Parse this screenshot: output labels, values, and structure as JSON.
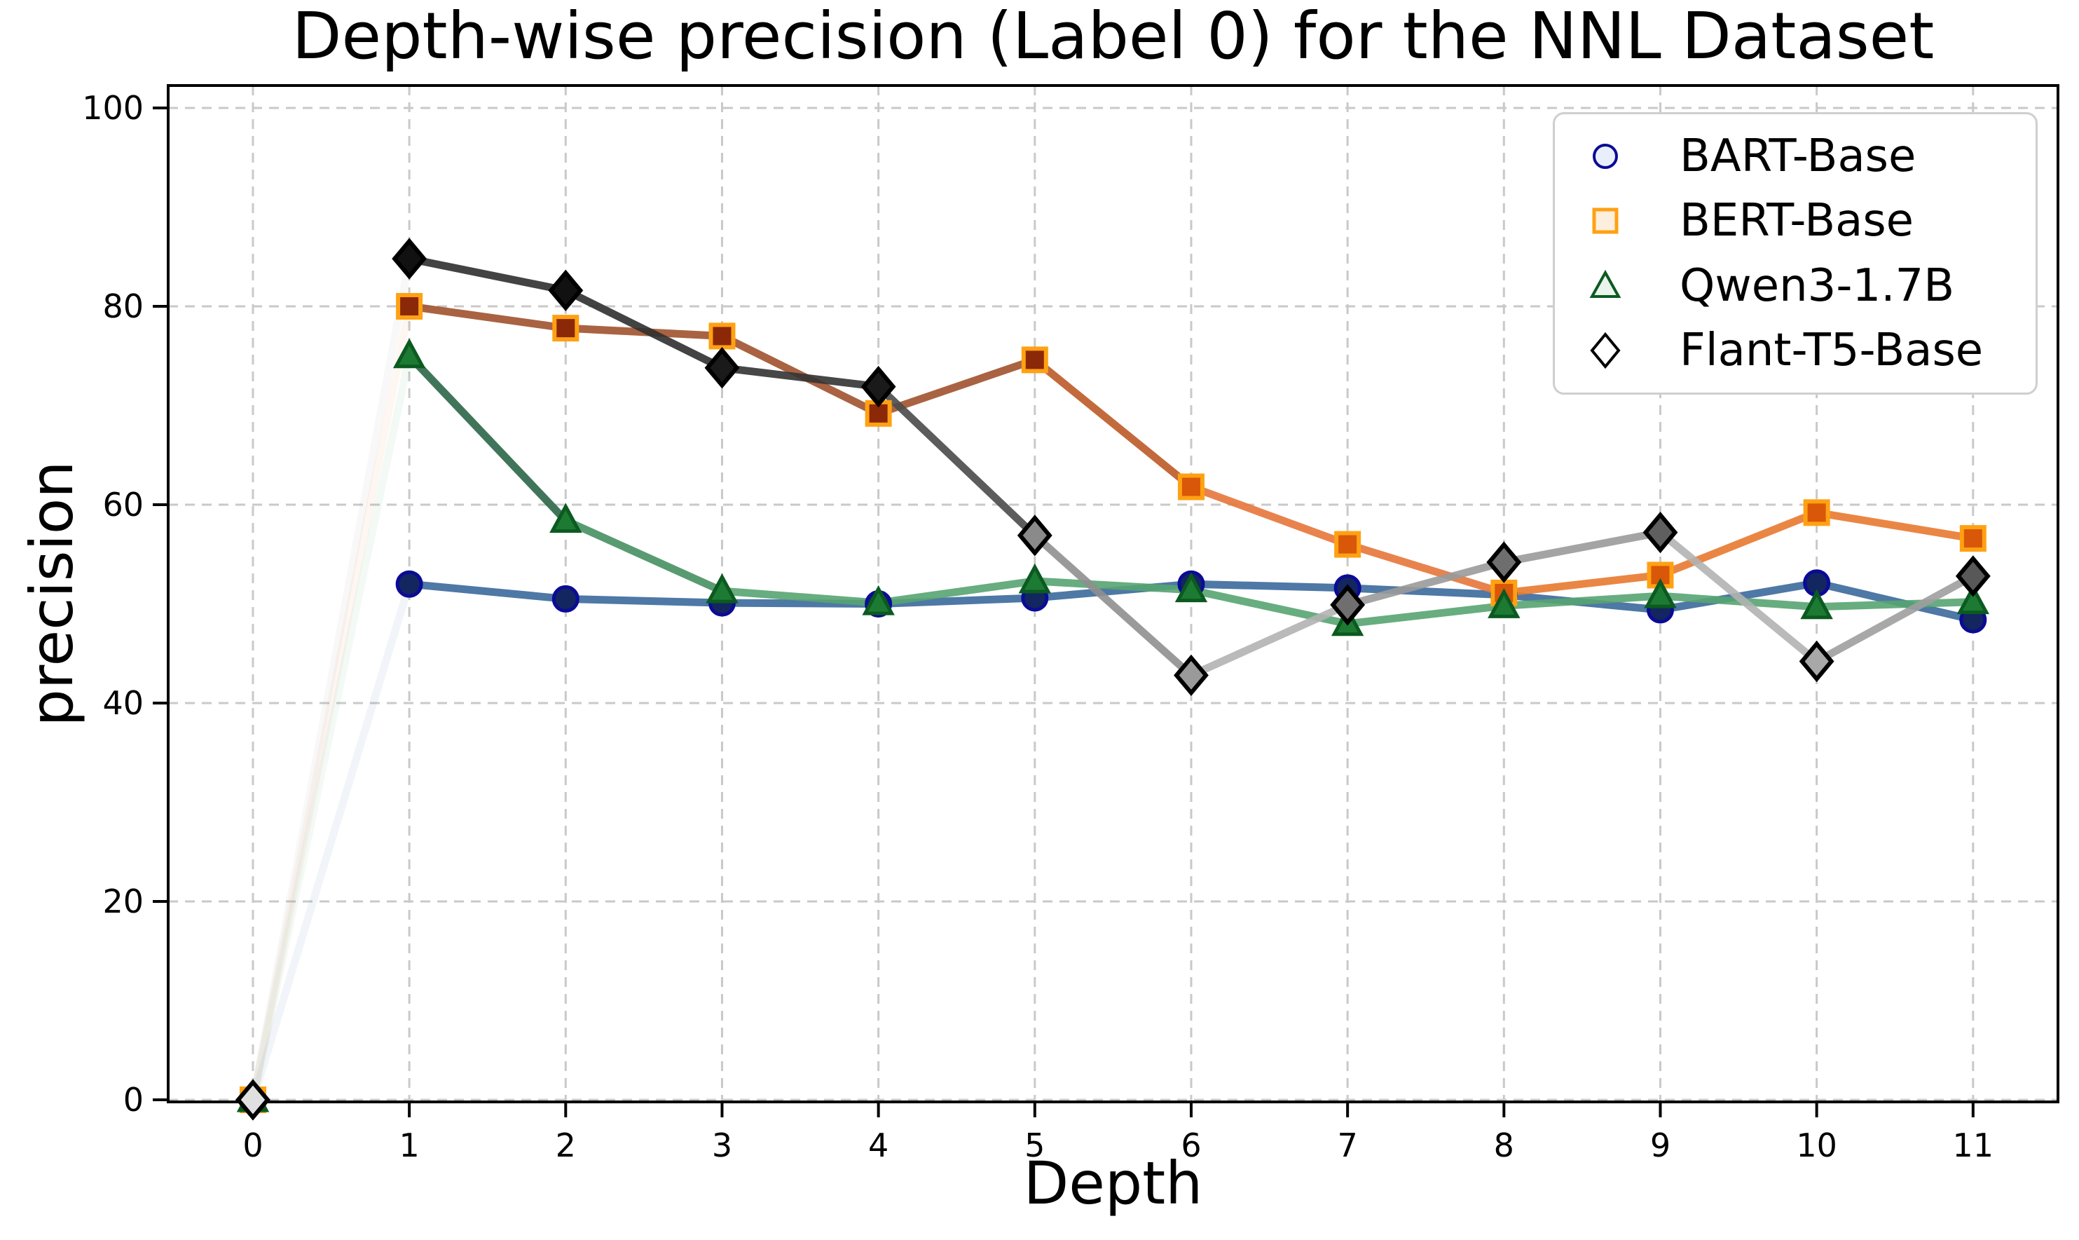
{
  "title": "Depth-wise precision (Label 0) for the NNL Dataset",
  "chart_data": {
    "type": "line",
    "title": "Depth-wise precision (Label 0) for the NNL Dataset",
    "xlabel": "Depth",
    "ylabel": "precision",
    "x": [
      0,
      1,
      2,
      3,
      4,
      5,
      6,
      7,
      8,
      9,
      10,
      11
    ],
    "x_ticks": [
      0,
      1,
      2,
      3,
      4,
      5,
      6,
      7,
      8,
      9,
      10,
      11
    ],
    "y_ticks": [
      0,
      20,
      40,
      60,
      80,
      100
    ],
    "xlim": [
      -0.542,
      11.543
    ],
    "ylim": [
      -0.212,
      102.26
    ],
    "grid": {
      "on": true,
      "color": "#c9c9c9",
      "dash": "14 10",
      "width": 3
    },
    "legend_position": "upper right",
    "axis_color": "#000000",
    "background": "#ffffff",
    "series": [
      {
        "name": "BART-Base",
        "marker": "circle",
        "values": [
          0,
          52.0,
          50.5,
          50.1,
          50.0,
          50.6,
          52.0,
          51.6,
          50.9,
          49.4,
          52.1,
          48.4
        ],
        "line_width": 11,
        "marker_edge": "#0b0b96",
        "legend_fill": "#e9effa",
        "marker_fill": [
          "#13265f",
          "#13265f",
          "#13265f",
          "#13265f",
          "#13265f",
          "#13265f",
          "#13265f",
          "#13265f",
          "#13265f",
          "#13265f",
          "#13265f",
          "#13265f"
        ],
        "seg_colors": [
          "#3b699b",
          "#3b699b",
          "#3b699b",
          "#3b699b",
          "#3b699b",
          "#3b699b",
          "#3b699b",
          "#3b699b",
          "#3b699b",
          "#3b699b",
          "#3b699b"
        ],
        "seg_opacity": [
          0.07,
          0.9,
          0.9,
          0.9,
          0.9,
          0.9,
          0.9,
          0.9,
          0.9,
          0.9,
          0.9
        ]
      },
      {
        "name": "BERT-Base",
        "marker": "square",
        "values": [
          0,
          80.0,
          77.8,
          77.0,
          69.2,
          74.6,
          61.8,
          56.0,
          51.1,
          52.9,
          59.2,
          56.6
        ],
        "line_width": 11,
        "marker_edge": "#ffa113",
        "legend_fill": "#fdeede",
        "marker_fill": [
          "#8b2808",
          "#8b2808",
          "#8b2808",
          "#8b2808",
          "#8b2808",
          "#8b2808",
          "#d95708",
          "#d95708",
          "#d95708",
          "#d95708",
          "#d95708",
          "#d95708"
        ],
        "seg_colors": [
          "#e07b3a",
          "#a0522d",
          "#a0522d",
          "#a0522d",
          "#a0522d",
          "#bc5a28",
          "#e5763b",
          "#e5763b",
          "#e8792f",
          "#e8792f",
          "#e8792f"
        ],
        "seg_opacity": [
          0.07,
          0.9,
          0.9,
          0.9,
          0.9,
          0.9,
          0.9,
          0.9,
          0.9,
          0.9,
          0.9
        ]
      },
      {
        "name": "Qwen3-1.7B",
        "marker": "triangle",
        "values": [
          0,
          75.0,
          58.4,
          51.3,
          50.1,
          52.3,
          51.4,
          48.0,
          49.8,
          50.8,
          49.7,
          50.2
        ],
        "line_width": 11,
        "marker_edge": "#0b5a20",
        "legend_fill": "#eaf4ec",
        "marker_fill": [
          "#1d7a33",
          "#1d7a33",
          "#1d7a33",
          "#1d7a33",
          "#1d7a33",
          "#1d7a33",
          "#1d7a33",
          "#1d7a33",
          "#1d7a33",
          "#1d7a33",
          "#1d7a33",
          "#1d7a33"
        ],
        "seg_colors": [
          "#57a471",
          "#2c6648",
          "#479062",
          "#57a471",
          "#57a471",
          "#57a471",
          "#57a471",
          "#57a471",
          "#57a471",
          "#57a471",
          "#57a471"
        ],
        "seg_opacity": [
          0.07,
          0.9,
          0.9,
          0.9,
          0.9,
          0.9,
          0.9,
          0.9,
          0.9,
          0.9,
          0.9
        ]
      },
      {
        "name": "Flant-T5-Base",
        "marker": "diamond",
        "values": [
          0,
          84.8,
          81.6,
          73.8,
          71.9,
          56.9,
          42.8,
          49.9,
          54.2,
          57.2,
          44.2,
          52.8
        ],
        "line_width": 11,
        "marker_edge": "#000000",
        "legend_fill": "#ffffff",
        "marker_fill": [
          "#e0e0e0",
          "#111111",
          "#111111",
          "#1a1a1a",
          "#1a1a1a",
          "#8a8a8a",
          "#9a9a9a",
          "#6f6f6f",
          "#6e6e6e",
          "#5f5f5f",
          "#a8a8a8",
          "#585858"
        ],
        "seg_colors": [
          "#9e9e9e",
          "#2f2f2f",
          "#2f2f2f",
          "#333333",
          "#4a4a4a",
          "#8f8f8f",
          "#b3b3b3",
          "#9a9a9a",
          "#9a9a9a",
          "#b3b3b3",
          "#9e9e9e"
        ],
        "seg_opacity": [
          0.07,
          0.9,
          0.9,
          0.9,
          0.9,
          0.9,
          0.9,
          0.9,
          0.9,
          0.9,
          0.9
        ]
      }
    ]
  }
}
